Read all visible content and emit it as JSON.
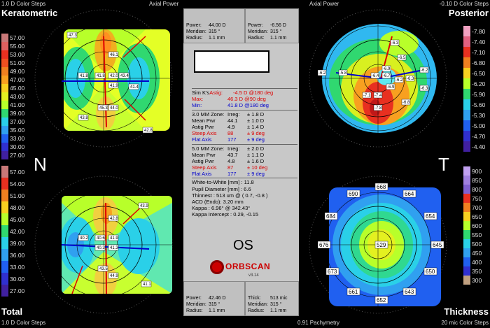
{
  "corners": {
    "tl_steps": "1.0 D Color Steps",
    "tl_title": "Keratometric",
    "tl_axial": "Axial Power",
    "tr_axial": "Axial Power",
    "tr_steps": "-0.10 D Color Steps",
    "tr_title": "Posterior",
    "bl_title": "Total",
    "bl_steps": "1.0 D Color Steps",
    "br_title": "Thickness",
    "br_pach": "0.91 Pachymetry",
    "br_steps": "20 mic Color Steps"
  },
  "left_scale": {
    "top": [
      "57.00",
      "55.00",
      "53.00",
      "51.00",
      "49.00",
      "47.00",
      "45.00",
      "43.00",
      "41.00",
      "39.00",
      "37.00",
      "35.00",
      "33.00",
      "30.00",
      "27.00"
    ],
    "bottom": [
      "57.00",
      "54.00",
      "51.00",
      "48.00",
      "45.00",
      "42.00",
      "39.00",
      "36.00",
      "33.00",
      "30.00",
      "27.00"
    ]
  },
  "right_scale": {
    "top": [
      "-7.80",
      "-7.40",
      "-7.10",
      "-6.80",
      "-6.50",
      "-6.20",
      "-5.90",
      "-5.60",
      "-5.30",
      "-5.00",
      "-4.70",
      "-4.40"
    ],
    "bottom": [
      "900",
      "850",
      "800",
      "750",
      "700",
      "650",
      "600",
      "550",
      "500",
      "450",
      "400",
      "350",
      "300"
    ]
  },
  "side_letters": {
    "left": "N",
    "right": "T"
  },
  "top_boxes": [
    {
      "rows": [
        [
          "Power:",
          "44.00 D"
        ],
        [
          "Meridian:",
          "315 °"
        ],
        [
          "Radius:",
          "1.1 mm"
        ]
      ]
    },
    {
      "rows": [
        [
          "Power:",
          "-6.56 D"
        ],
        [
          "Meridian:",
          "315 °"
        ],
        [
          "Radius:",
          "1.1 mm"
        ]
      ]
    }
  ],
  "bottom_boxes": [
    {
      "rows": [
        [
          "Power:",
          "42.46 D"
        ],
        [
          "Meridian:",
          "315 °"
        ],
        [
          "Radius:",
          "1.1 mm"
        ]
      ]
    },
    {
      "rows": [
        [
          "Thick:",
          "513 mic"
        ],
        [
          "Meridian:",
          "315 °"
        ],
        [
          "Radius:",
          "1.1 mm"
        ]
      ]
    }
  ],
  "stats": {
    "simk": {
      "label": "Sim K's",
      "astig": "Astig:",
      "astig_val": "-4.5 D  @180 deg",
      "max": "Max:",
      "max_val": "46.3 D  @90 deg",
      "min": "Min:",
      "min_val": "41.8 D  @180 deg"
    },
    "zone3": {
      "label": "3.0 MM Zone:",
      "irreg": "Irreg:",
      "irreg_val": "± 1.8 D",
      "mean": "Mean Pwr",
      "mean_val": "44.1",
      "mean_pm": "± 1.0 D",
      "astig": "Astig Pwr",
      "astig_val": "4.9",
      "astig_pm": "± 1.4 D",
      "steep": "Steep Axis",
      "steep_val": "88",
      "steep_pm": "± 9 deg",
      "flat": "Flat Axis",
      "flat_val": "177",
      "flat_pm": "± 9 deg"
    },
    "zone5": {
      "label": "5.0 MM Zone:",
      "irreg": "Irreg:",
      "irreg_val": "± 2.0 D",
      "mean": "Mean Pwr",
      "mean_val": "43.7",
      "mean_pm": "± 1.1 D",
      "astig": "Astig Pwr",
      "astig_val": "4.8",
      "astig_pm": "± 1.6 D",
      "steep": "Steep Axis",
      "steep_val": "87",
      "steep_pm": "± 10 deg",
      "flat": "Flat Axis",
      "flat_val": "177",
      "flat_pm": "± 9 deg"
    },
    "misc": [
      "White-to-White [mm] : 11.8",
      "Pupil Diameter [mm] :  6.6",
      "Thinnest : 513 um @ ( 0.7, -0.8 )",
      "ACD (Endo): 3.20 mm",
      "Kappa : 6.96° @ 342.43°",
      "Kappa Intercept : 0.29, -0.15"
    ]
  },
  "eye": "OS",
  "logo": "ORBSCAN",
  "version": "v3.14",
  "thickness_values": [
    "668",
    "690",
    "664",
    "684",
    "654",
    "676",
    "529",
    "645",
    "673",
    "650",
    "661",
    "643",
    "652"
  ],
  "kerat_values": [
    "47.3",
    "46.1",
    "41.8",
    "41.8",
    "42.0",
    "43.4",
    "41.9",
    "41.4",
    "43.8",
    "45.3",
    "44.0",
    "42.8"
  ],
  "posterior_values": [
    "-6.3",
    "-6.9",
    "-6.7",
    "-6.2",
    "-5.8",
    "-6.4",
    "-6.2",
    "-6.3",
    "-6.5",
    "-6.2",
    "-7.4",
    "-7.8",
    "-6.9",
    "-7.1",
    "-6.8",
    "-6.3"
  ],
  "total_values": [
    "43.9",
    "42.8",
    "40.2",
    "40.6",
    "41.9",
    "40.3",
    "41.3",
    "43.5",
    "41.1",
    "44.9"
  ]
}
